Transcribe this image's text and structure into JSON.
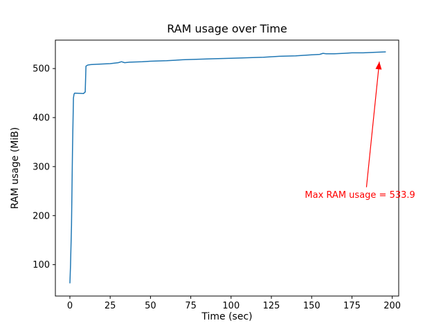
{
  "chart_data": {
    "type": "line",
    "title": "RAM usage over Time",
    "xlabel": "Time (sec)",
    "ylabel": "RAM usage (MiB)",
    "xlim": [
      -9,
      204
    ],
    "ylim": [
      36,
      558
    ],
    "xticks": [
      0,
      25,
      50,
      75,
      100,
      125,
      150,
      175,
      200
    ],
    "yticks": [
      100,
      200,
      300,
      400,
      500
    ],
    "grid": false,
    "legend": "none",
    "line_color": "#1f77b4",
    "series": [
      {
        "name": "RAM usage",
        "points": [
          [
            0,
            62
          ],
          [
            0.4,
            100
          ],
          [
            1,
            180
          ],
          [
            1.6,
            330
          ],
          [
            2.2,
            440
          ],
          [
            2.6,
            448
          ],
          [
            3,
            450
          ],
          [
            8.5,
            449
          ],
          [
            9,
            451
          ],
          [
            9.5,
            452
          ],
          [
            10,
            505
          ],
          [
            11,
            507
          ],
          [
            13,
            508
          ],
          [
            18,
            509
          ],
          [
            25,
            510
          ],
          [
            30,
            512
          ],
          [
            32,
            514
          ],
          [
            34,
            512
          ],
          [
            37,
            513
          ],
          [
            45,
            514
          ],
          [
            50,
            515
          ],
          [
            60,
            516
          ],
          [
            70,
            518
          ],
          [
            80,
            519
          ],
          [
            90,
            520
          ],
          [
            100,
            521
          ],
          [
            110,
            522
          ],
          [
            120,
            523
          ],
          [
            130,
            525
          ],
          [
            140,
            526
          ],
          [
            150,
            528
          ],
          [
            155,
            529
          ],
          [
            157,
            531
          ],
          [
            159,
            530
          ],
          [
            164,
            530
          ],
          [
            170,
            531
          ],
          [
            175,
            532
          ],
          [
            182,
            532
          ],
          [
            188,
            533
          ],
          [
            196,
            534
          ]
        ]
      }
    ],
    "annotation": {
      "label": "Max RAM usage = 533.9",
      "max_value": 533.9,
      "color": "#ff0000",
      "text_xy": [
        180,
        242
      ],
      "arrow_start": [
        184,
        258
      ],
      "arrow_end": [
        192,
        514
      ]
    }
  }
}
